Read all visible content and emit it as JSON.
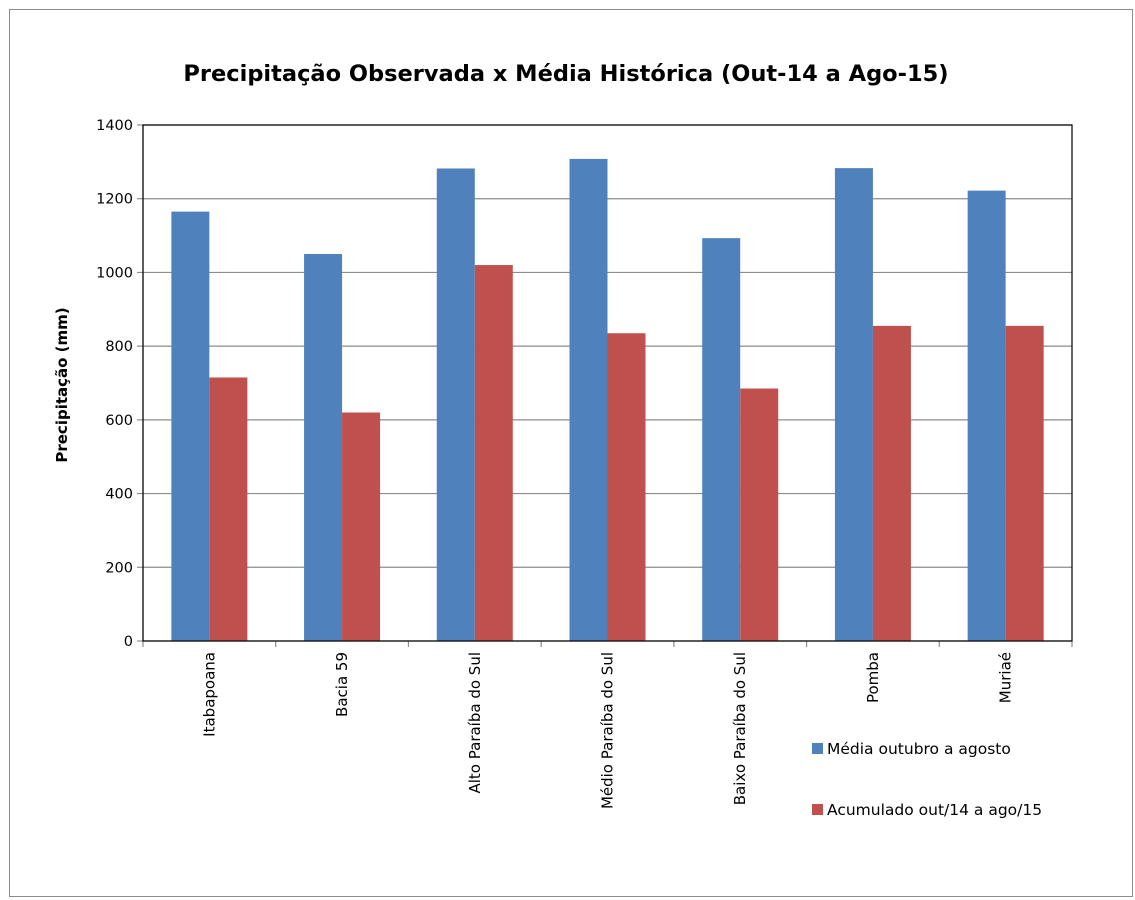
{
  "chart_data": {
    "type": "bar",
    "title": "Precipitação Observada x Média Histórica (Out-14 a Ago-15)",
    "xlabel": "",
    "ylabel": "Precipitação (mm)",
    "ylim": [
      0,
      1400
    ],
    "yticks": [
      0,
      200,
      400,
      600,
      800,
      1000,
      1200,
      1400
    ],
    "grid": true,
    "legend_position": "bottom-right",
    "categories": [
      "Itabapoana",
      "Bacia 59",
      "Alto Paraíba do Sul",
      "Médio Paraíba do Sul",
      "Baixo Paraíba do Sul",
      "Pomba",
      "Muriaé"
    ],
    "series": [
      {
        "name": "Média outubro a agosto",
        "color": "#4f81bd",
        "values": [
          1165,
          1050,
          1282,
          1308,
          1093,
          1283,
          1222
        ]
      },
      {
        "name": "Acumulado out/14 a ago/15",
        "color": "#c0504d",
        "values": [
          715,
          620,
          1020,
          835,
          685,
          855,
          855
        ]
      }
    ]
  }
}
